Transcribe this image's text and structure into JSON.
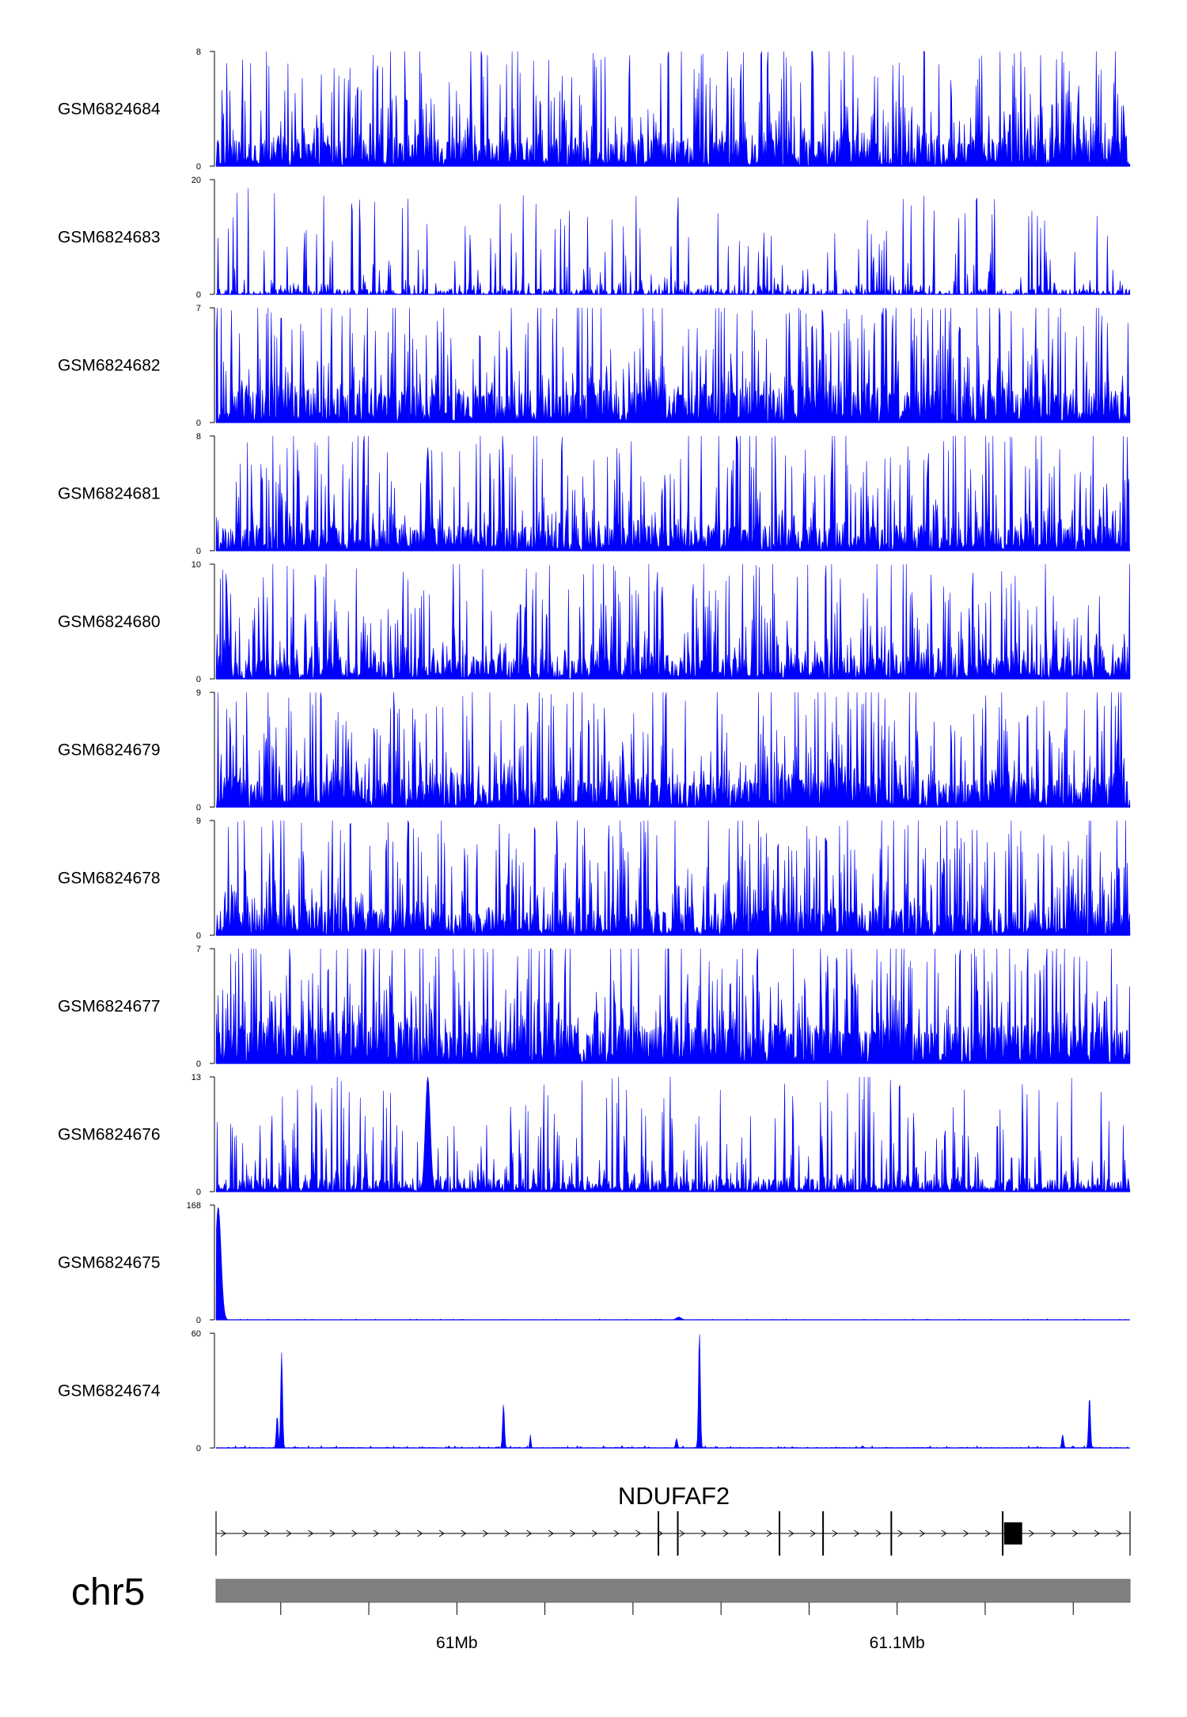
{
  "chart_data": {
    "type": "area",
    "color": "#0000ff",
    "axis_color": "#000000",
    "xlim_mb": [
      60.9453,
      61.1529
    ],
    "tracks": [
      {
        "name": "GSM6824684",
        "ymax": 8,
        "ymin": 0,
        "profile": "dense",
        "seed": 11,
        "base": 1.5,
        "fill": 0.42
      },
      {
        "name": "GSM6824683",
        "ymax": 20,
        "ymin": 0,
        "profile": "spiky",
        "seed": 23,
        "base": 1.0,
        "fill": 0.18
      },
      {
        "name": "GSM6824682",
        "ymax": 7,
        "ymin": 0,
        "profile": "dense",
        "seed": 37,
        "base": 1.6,
        "fill": 0.45
      },
      {
        "name": "GSM6824681",
        "ymax": 8,
        "ymin": 0,
        "profile": "dense",
        "seed": 41,
        "base": 1.4,
        "fill": 0.4,
        "peaks": [
          {
            "x": 60.9934,
            "y": 7.2,
            "w": 0.0005
          }
        ]
      },
      {
        "name": "GSM6824680",
        "ymax": 10,
        "ymin": 0,
        "profile": "dense",
        "seed": 53,
        "base": 1.5,
        "fill": 0.42
      },
      {
        "name": "GSM6824679",
        "ymax": 9,
        "ymin": 0,
        "profile": "dense",
        "seed": 67,
        "base": 1.7,
        "fill": 0.44
      },
      {
        "name": "GSM6824678",
        "ymax": 9,
        "ymin": 0,
        "profile": "dense",
        "seed": 71,
        "base": 1.6,
        "fill": 0.43
      },
      {
        "name": "GSM6824677",
        "ymax": 7,
        "ymin": 0,
        "profile": "dense",
        "seed": 83,
        "base": 1.8,
        "fill": 0.46
      },
      {
        "name": "GSM6824676",
        "ymax": 13,
        "ymin": 0,
        "profile": "dense",
        "seed": 97,
        "base": 1.2,
        "fill": 0.3,
        "peaks": [
          {
            "x": 60.9934,
            "y": 13,
            "w": 0.0008
          }
        ]
      },
      {
        "name": "GSM6824675",
        "ymax": 168,
        "ymin": 0,
        "profile": "flat",
        "seed": 101,
        "base": 1.0,
        "peaks": [
          {
            "x": 60.9458,
            "y": 165,
            "w": 0.0009
          },
          {
            "x": 61.0504,
            "y": 4,
            "w": 0.0008
          }
        ]
      },
      {
        "name": "GSM6824674",
        "ymax": 60,
        "ymin": 0,
        "profile": "flat",
        "seed": 113,
        "base": 1.0,
        "peaks": [
          {
            "x": 60.9602,
            "y": 50,
            "w": 0.0003
          },
          {
            "x": 60.9592,
            "y": 17,
            "w": 0.0003
          },
          {
            "x": 61.0106,
            "y": 23,
            "w": 0.0003
          },
          {
            "x": 61.0167,
            "y": 7,
            "w": 0.0002
          },
          {
            "x": 61.0551,
            "y": 61,
            "w": 0.0003
          },
          {
            "x": 61.0499,
            "y": 5,
            "w": 0.0003
          },
          {
            "x": 61.1437,
            "y": 27,
            "w": 0.0003
          },
          {
            "x": 61.1376,
            "y": 7,
            "w": 0.0003
          }
        ]
      }
    ],
    "gene": {
      "name": "NDUFAF2",
      "start_mb": 60.9453,
      "end_mb": 61.1529,
      "exons_mb": [
        {
          "start": 61.0456,
          "end": 61.0459
        },
        {
          "start": 61.05,
          "end": 61.0502
        },
        {
          "start": 61.0731,
          "end": 61.0733
        },
        {
          "start": 61.083,
          "end": 61.0832
        },
        {
          "start": 61.0985,
          "end": 61.0987
        },
        {
          "start": 61.1238,
          "end": 61.124
        },
        {
          "start": 61.1243,
          "end": 61.1284
        }
      ]
    },
    "ideogram": {
      "chrom": "chr5",
      "ticks_mb": [
        60.96,
        60.98,
        61.0,
        61.02,
        61.04,
        61.06,
        61.08,
        61.1,
        61.12,
        61.14
      ],
      "tick_labels": [
        {
          "mb": 61.0,
          "label": "61Mb"
        },
        {
          "mb": 61.1,
          "label": "61.1Mb"
        }
      ]
    }
  }
}
